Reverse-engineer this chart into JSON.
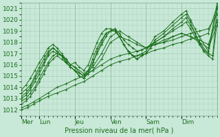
{
  "xlabel": "Pression niveau de la mer( hPa )",
  "bg_color": "#c8e8d8",
  "grid_color": "#a0c8b0",
  "line_color": "#1a6e1a",
  "tick_label_color": "#1a6e1a",
  "ylim": [
    1011.5,
    1021.5
  ],
  "yticks": [
    1012,
    1013,
    1014,
    1015,
    1016,
    1017,
    1018,
    1019,
    1020,
    1021
  ],
  "xlim": [
    0,
    264
  ],
  "day_sep_x": [
    0,
    24,
    72,
    120,
    168,
    216,
    264
  ],
  "day_labels": [
    "Mer",
    "Lun",
    "Jeu",
    "Ven",
    "Sam",
    "Dim"
  ],
  "series": [
    {
      "x": [
        0,
        8,
        16,
        24,
        36,
        48,
        60,
        72,
        84,
        96,
        108,
        120,
        132,
        144,
        156,
        168,
        180,
        192,
        204,
        216,
        228,
        240,
        252,
        264
      ],
      "y": [
        1012.0,
        1012.2,
        1012.5,
        1012.8,
        1013.2,
        1013.5,
        1013.8,
        1014.2,
        1014.5,
        1015.0,
        1015.5,
        1016.0,
        1016.3,
        1016.5,
        1016.8,
        1017.0,
        1017.3,
        1017.5,
        1017.8,
        1018.0,
        1018.3,
        1018.5,
        1018.8,
        1021.2
      ]
    },
    {
      "x": [
        0,
        8,
        16,
        24,
        36,
        48,
        60,
        72,
        84,
        96,
        108,
        120,
        132,
        144,
        156,
        168,
        180,
        192,
        204,
        216,
        228,
        240,
        252,
        264
      ],
      "y": [
        1012.2,
        1012.4,
        1012.7,
        1013.0,
        1013.5,
        1014.0,
        1014.3,
        1014.7,
        1015.0,
        1015.5,
        1016.0,
        1016.5,
        1016.8,
        1017.0,
        1017.2,
        1017.5,
        1017.8,
        1018.0,
        1018.2,
        1018.5,
        1018.8,
        1019.0,
        1019.2,
        1020.5
      ]
    },
    {
      "x": [
        0,
        6,
        12,
        18,
        24,
        30,
        36,
        42,
        48,
        54,
        60,
        66,
        72,
        84,
        96,
        108,
        120,
        132,
        144,
        156,
        168,
        180,
        192,
        204,
        216,
        228,
        240,
        252,
        264
      ],
      "y": [
        1012.5,
        1012.8,
        1013.2,
        1013.8,
        1014.5,
        1015.2,
        1016.0,
        1016.5,
        1016.8,
        1016.5,
        1016.2,
        1015.8,
        1015.5,
        1015.0,
        1015.5,
        1016.5,
        1018.0,
        1018.5,
        1018.2,
        1017.8,
        1017.5,
        1017.8,
        1018.2,
        1018.5,
        1018.8,
        1018.5,
        1018.0,
        1017.5,
        1019.5
      ]
    },
    {
      "x": [
        0,
        6,
        12,
        18,
        24,
        30,
        36,
        42,
        48,
        54,
        60,
        66,
        72,
        84,
        96,
        108,
        120,
        132,
        144,
        156,
        168,
        180,
        192,
        204,
        216,
        228,
        240,
        252,
        264
      ],
      "y": [
        1012.8,
        1013.0,
        1013.5,
        1014.0,
        1014.8,
        1015.5,
        1016.2,
        1016.8,
        1017.0,
        1016.8,
        1016.5,
        1016.0,
        1015.8,
        1015.2,
        1015.8,
        1017.0,
        1018.5,
        1019.0,
        1018.5,
        1018.0,
        1017.5,
        1017.8,
        1018.0,
        1018.5,
        1018.8,
        1018.5,
        1018.2,
        1017.8,
        1020.0
      ]
    },
    {
      "x": [
        0,
        6,
        12,
        18,
        24,
        30,
        36,
        42,
        48,
        54,
        60,
        66,
        72,
        78,
        84,
        90,
        96,
        102,
        108,
        114,
        120,
        126,
        132,
        138,
        144,
        150,
        156,
        162,
        168,
        174,
        180,
        192,
        204,
        216,
        222,
        228,
        234,
        240,
        246,
        252,
        258,
        264
      ],
      "y": [
        1013.0,
        1013.3,
        1013.8,
        1014.5,
        1015.2,
        1016.0,
        1016.8,
        1017.2,
        1017.0,
        1016.8,
        1016.5,
        1016.0,
        1015.8,
        1015.3,
        1015.0,
        1015.5,
        1016.2,
        1017.0,
        1017.8,
        1018.5,
        1019.0,
        1019.2,
        1018.8,
        1018.2,
        1017.8,
        1017.5,
        1017.2,
        1017.3,
        1017.5,
        1017.8,
        1018.0,
        1018.5,
        1019.0,
        1019.5,
        1019.8,
        1019.2,
        1018.5,
        1017.8,
        1017.2,
        1016.8,
        1016.5,
        1019.8
      ]
    },
    {
      "x": [
        0,
        6,
        12,
        18,
        24,
        30,
        36,
        42,
        48,
        54,
        60,
        66,
        72,
        78,
        84,
        90,
        96,
        102,
        108,
        114,
        120,
        126,
        132,
        138,
        144,
        150,
        156,
        162,
        168,
        174,
        180,
        192,
        204,
        216,
        222,
        228,
        234,
        240,
        246,
        252,
        258,
        264
      ],
      "y": [
        1013.2,
        1013.5,
        1014.0,
        1014.8,
        1015.5,
        1016.2,
        1017.0,
        1017.5,
        1017.2,
        1016.8,
        1016.3,
        1015.8,
        1015.5,
        1015.0,
        1014.8,
        1015.2,
        1016.0,
        1017.2,
        1018.0,
        1018.8,
        1019.0,
        1019.0,
        1018.5,
        1017.8,
        1017.2,
        1016.8,
        1016.5,
        1016.8,
        1017.0,
        1017.5,
        1018.0,
        1018.5,
        1019.2,
        1019.8,
        1020.2,
        1019.5,
        1018.8,
        1018.0,
        1017.3,
        1017.0,
        1016.8,
        1021.0
      ]
    },
    {
      "x": [
        0,
        6,
        12,
        18,
        24,
        30,
        36,
        42,
        48,
        54,
        60,
        66,
        72,
        78,
        84,
        90,
        96,
        102,
        108,
        114,
        120,
        126,
        132,
        138,
        144,
        150,
        156,
        162,
        168,
        174,
        180,
        192,
        204,
        216,
        222,
        228,
        234,
        240,
        252,
        264
      ],
      "y": [
        1013.5,
        1013.8,
        1014.2,
        1015.0,
        1015.8,
        1016.5,
        1017.2,
        1017.5,
        1017.2,
        1016.8,
        1016.2,
        1015.8,
        1015.5,
        1015.0,
        1014.8,
        1015.5,
        1016.5,
        1017.5,
        1018.2,
        1018.8,
        1019.0,
        1019.2,
        1018.5,
        1017.8,
        1017.2,
        1016.8,
        1016.5,
        1016.8,
        1017.0,
        1017.5,
        1018.2,
        1018.8,
        1019.5,
        1020.2,
        1020.5,
        1019.8,
        1018.8,
        1018.0,
        1017.0,
        1021.0
      ]
    },
    {
      "x": [
        0,
        6,
        12,
        18,
        24,
        30,
        36,
        42,
        48,
        54,
        60,
        66,
        72,
        78,
        84,
        90,
        96,
        102,
        108,
        114,
        120,
        126,
        132,
        138,
        144,
        150,
        156,
        162,
        168,
        174,
        180,
        192,
        204,
        216,
        222,
        228,
        234,
        240,
        252,
        264
      ],
      "y": [
        1013.8,
        1014.2,
        1014.8,
        1015.5,
        1016.2,
        1016.8,
        1017.5,
        1017.8,
        1017.5,
        1017.0,
        1016.5,
        1016.0,
        1016.2,
        1015.8,
        1015.5,
        1016.0,
        1017.0,
        1018.0,
        1018.8,
        1019.2,
        1019.2,
        1019.0,
        1018.5,
        1017.8,
        1017.2,
        1016.8,
        1016.8,
        1017.0,
        1017.2,
        1017.8,
        1018.5,
        1019.0,
        1019.8,
        1020.5,
        1020.8,
        1020.0,
        1019.2,
        1018.5,
        1017.2,
        1021.5
      ]
    }
  ],
  "figsize": [
    3.2,
    2.0
  ],
  "dpi": 100
}
